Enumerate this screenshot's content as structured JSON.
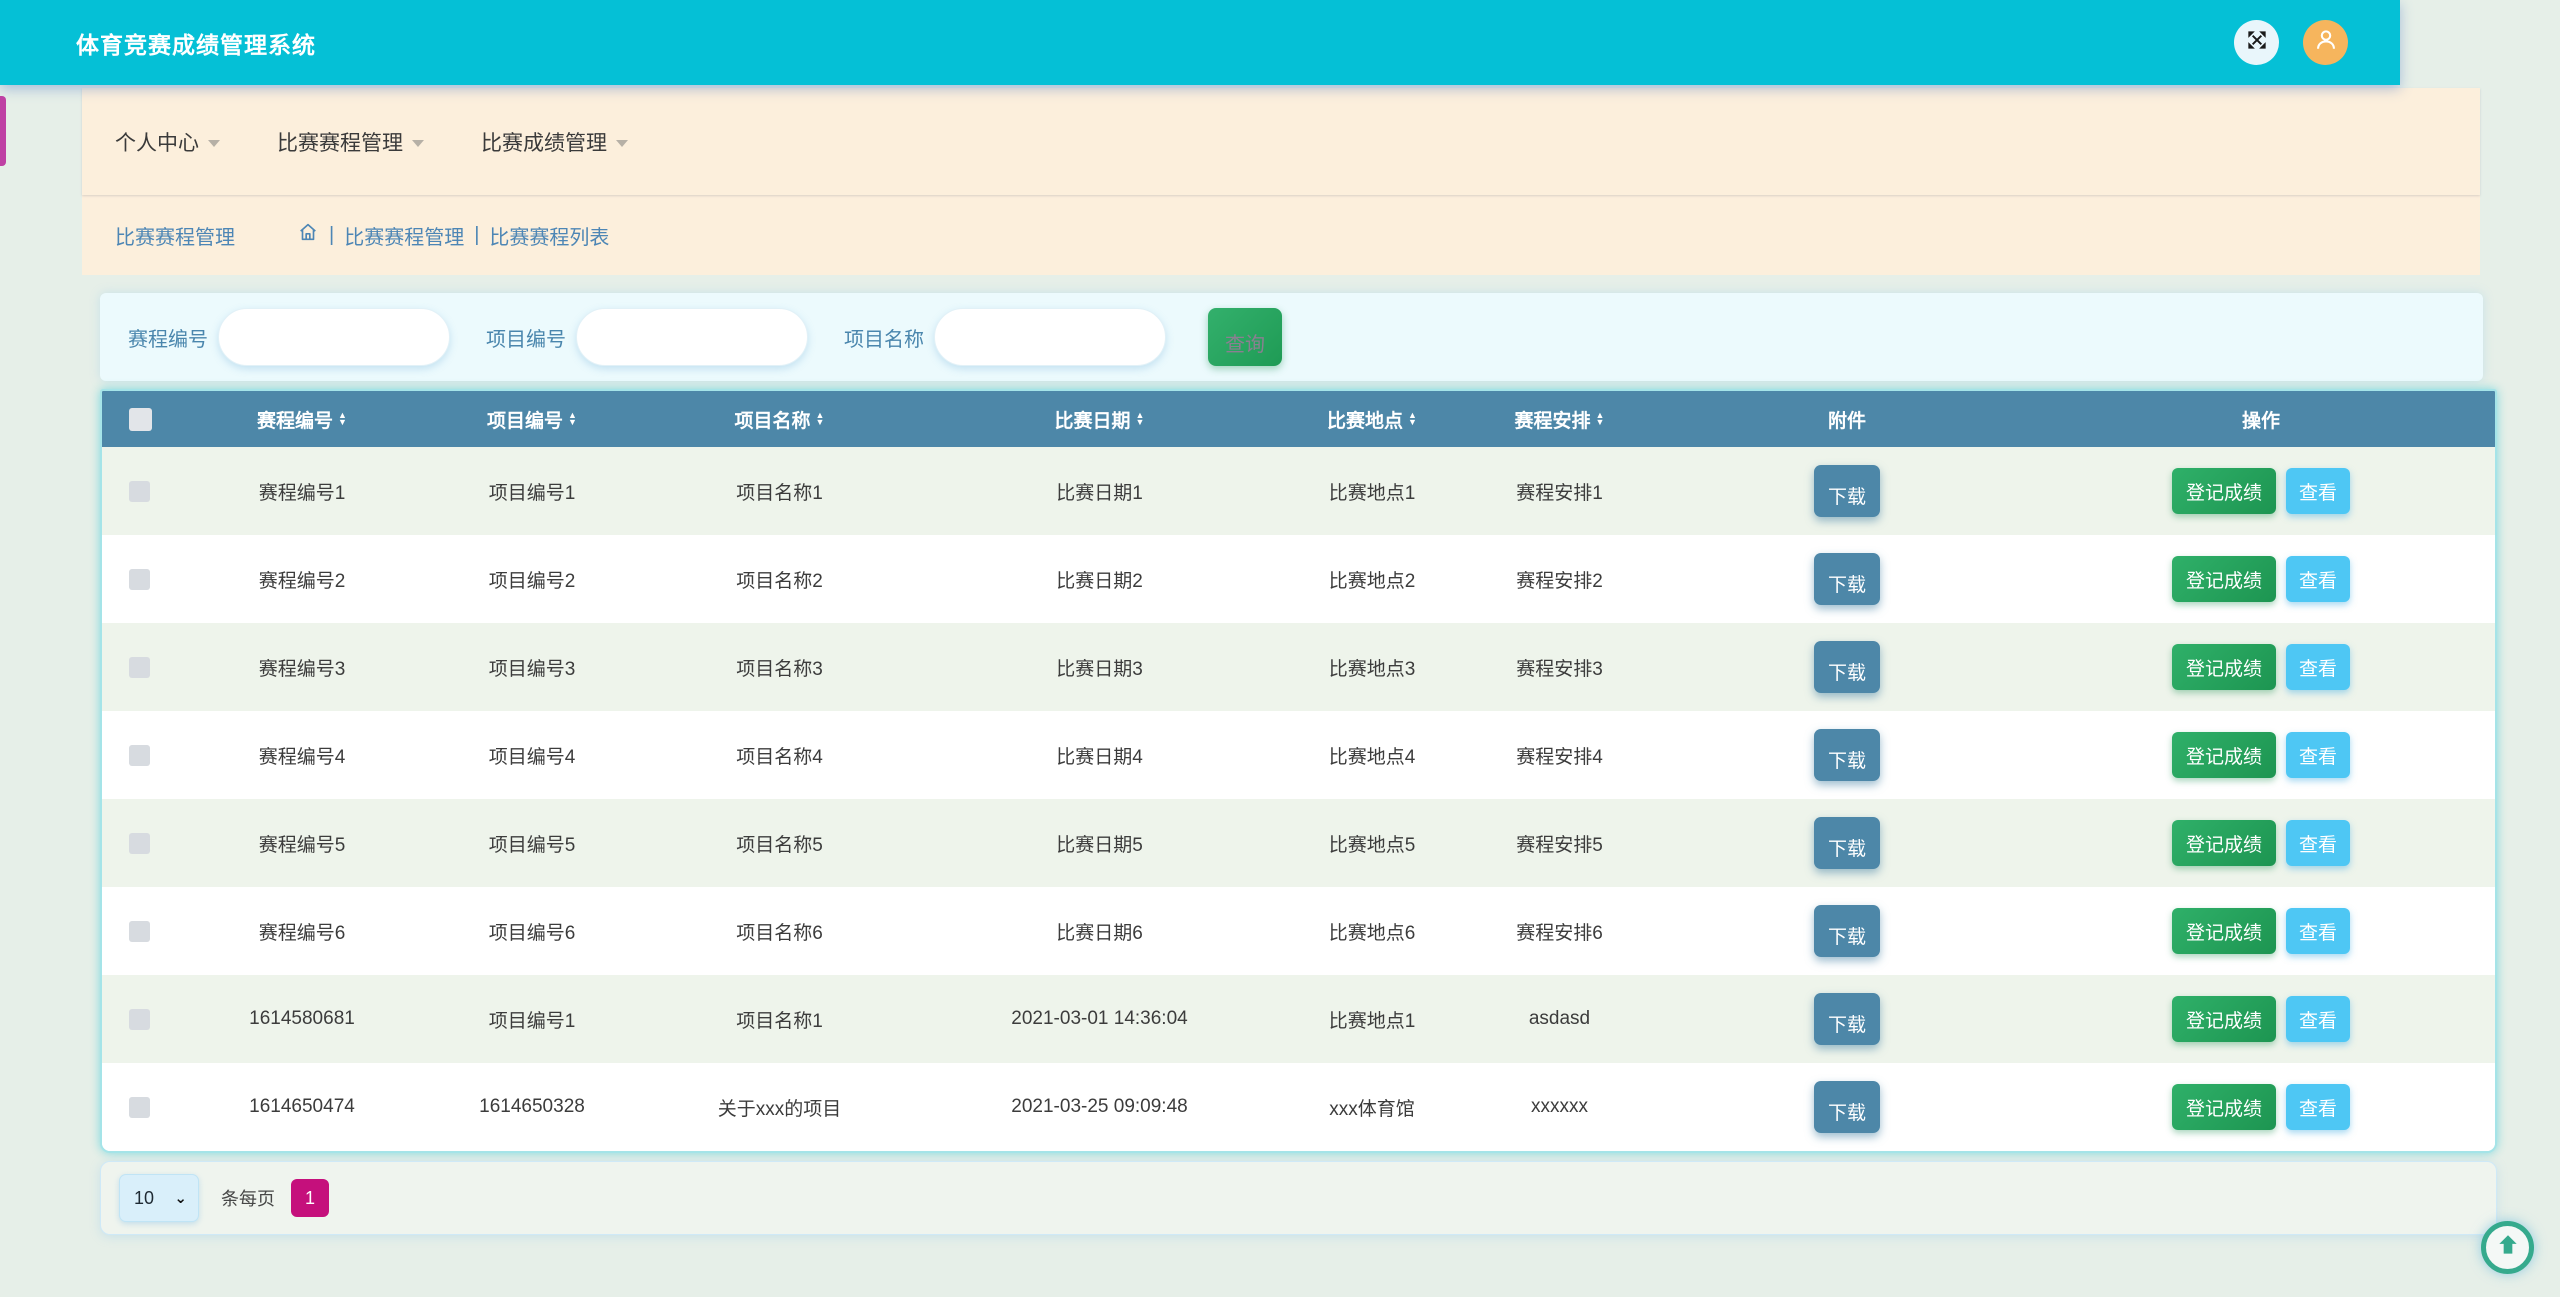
{
  "header": {
    "title": "体育竞赛成绩管理系统"
  },
  "nav": {
    "items": [
      {
        "label": "个人中心"
      },
      {
        "label": "比赛赛程管理"
      },
      {
        "label": "比赛成绩管理"
      }
    ]
  },
  "breadcrumb": {
    "section": "比赛赛程管理",
    "separator": "|",
    "items": [
      "比赛赛程管理",
      "比赛赛程列表"
    ]
  },
  "search": {
    "fields": [
      {
        "label": "赛程编号",
        "value": ""
      },
      {
        "label": "项目编号",
        "value": ""
      },
      {
        "label": "项目名称",
        "value": ""
      }
    ],
    "submit_label": "查询"
  },
  "table": {
    "columns": [
      {
        "label": "赛程编号",
        "sortable": true
      },
      {
        "label": "项目编号",
        "sortable": true
      },
      {
        "label": "项目名称",
        "sortable": true
      },
      {
        "label": "比赛日期",
        "sortable": true
      },
      {
        "label": "比赛地点",
        "sortable": true
      },
      {
        "label": "赛程安排",
        "sortable": true
      },
      {
        "label": "附件",
        "sortable": false
      },
      {
        "label": "操作",
        "sortable": false
      }
    ],
    "attachment_button_label": "下载",
    "action_buttons": [
      {
        "label": "登记成绩"
      },
      {
        "label": "查看"
      }
    ],
    "rows": [
      {
        "schedule_no": "赛程编号1",
        "item_no": "项目编号1",
        "item_name": "项目名称1",
        "date": "比赛日期1",
        "venue": "比赛地点1",
        "arrangement": "赛程安排1"
      },
      {
        "schedule_no": "赛程编号2",
        "item_no": "项目编号2",
        "item_name": "项目名称2",
        "date": "比赛日期2",
        "venue": "比赛地点2",
        "arrangement": "赛程安排2"
      },
      {
        "schedule_no": "赛程编号3",
        "item_no": "项目编号3",
        "item_name": "项目名称3",
        "date": "比赛日期3",
        "venue": "比赛地点3",
        "arrangement": "赛程安排3"
      },
      {
        "schedule_no": "赛程编号4",
        "item_no": "项目编号4",
        "item_name": "项目名称4",
        "date": "比赛日期4",
        "venue": "比赛地点4",
        "arrangement": "赛程安排4"
      },
      {
        "schedule_no": "赛程编号5",
        "item_no": "项目编号5",
        "item_name": "项目名称5",
        "date": "比赛日期5",
        "venue": "比赛地点5",
        "arrangement": "赛程安排5"
      },
      {
        "schedule_no": "赛程编号6",
        "item_no": "项目编号6",
        "item_name": "项目名称6",
        "date": "比赛日期6",
        "venue": "比赛地点6",
        "arrangement": "赛程安排6"
      },
      {
        "schedule_no": "1614580681",
        "item_no": "项目编号1",
        "item_name": "项目名称1",
        "date": "2021-03-01 14:36:04",
        "venue": "比赛地点1",
        "arrangement": "asdasd"
      },
      {
        "schedule_no": "1614650474",
        "item_no": "1614650328",
        "item_name": "关于xxx的项目",
        "date": "2021-03-25 09:09:48",
        "venue": "xxx体育馆",
        "arrangement": "xxxxxx"
      }
    ]
  },
  "pagination": {
    "page_size": "10",
    "per_page_label": "条每页",
    "current_page": "1"
  },
  "colors": {
    "header_cyan": "#05c0d6",
    "nav_peach": "#fcefdc",
    "page_mint": "#e6efe8",
    "table_header_blue": "#4d87a8",
    "green_button": "#27a35f",
    "sky_button": "#4ec7f4",
    "magenta_badge": "#c5107c",
    "back_top_teal": "#35aa8d"
  }
}
